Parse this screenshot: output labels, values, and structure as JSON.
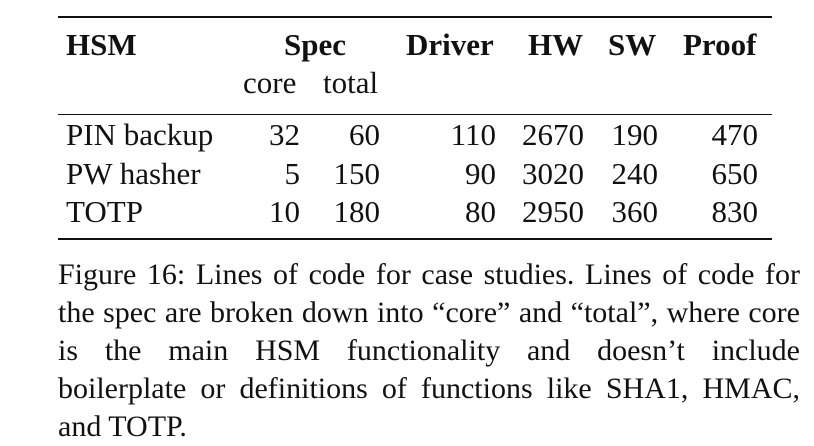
{
  "table": {
    "headers": {
      "hsm": "HSM",
      "spec": "Spec",
      "driver": "Driver",
      "hw": "HW",
      "sw": "SW",
      "proof": "Proof"
    },
    "subheaders": {
      "core": "core",
      "total": "total"
    },
    "rows": [
      {
        "name": "PIN backup",
        "core": "32",
        "total": "60",
        "driver": "110",
        "hw": "2670",
        "sw": "190",
        "proof": "470"
      },
      {
        "name": "PW hasher",
        "core": "5",
        "total": "150",
        "driver": "90",
        "hw": "3020",
        "sw": "240",
        "proof": "650"
      },
      {
        "name": "TOTP",
        "core": "10",
        "total": "180",
        "driver": "80",
        "hw": "2950",
        "sw": "360",
        "proof": "830"
      }
    ]
  },
  "caption": "Figure 16: Lines of code for case studies. Lines of code for the spec are broken down into “core” and “total”, where core is the main HSM functionality and doesn’t include boilerplate or definitions of functions like SHA1, HMAC, and TOTP."
}
